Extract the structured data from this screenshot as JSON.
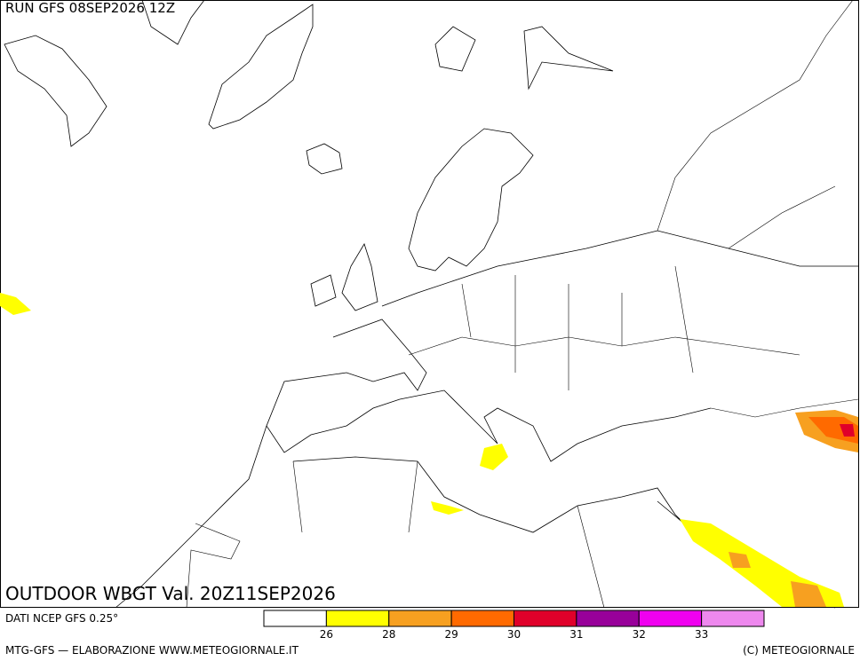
{
  "header": {
    "run": "RUN GFS 08SEP2026 12Z"
  },
  "map": {
    "title": "OUTDOOR WBGT Val. 20Z11SEP2026"
  },
  "legend": {
    "source": "DATI NCEP GFS 0.25°",
    "colors": [
      "#ffffff",
      "#ffff00",
      "#f7a020",
      "#ff6a00",
      "#e0002a",
      "#98009a",
      "#f000f0",
      "#ee88ee"
    ],
    "labels": [
      "26",
      "28",
      "29",
      "30",
      "31",
      "32",
      "33"
    ]
  },
  "footer": {
    "left": "MTG-GFS — ELABORAZIONE WWW.METEOGIORNALE.IT",
    "right": "(C) METEOGIORNALE"
  }
}
